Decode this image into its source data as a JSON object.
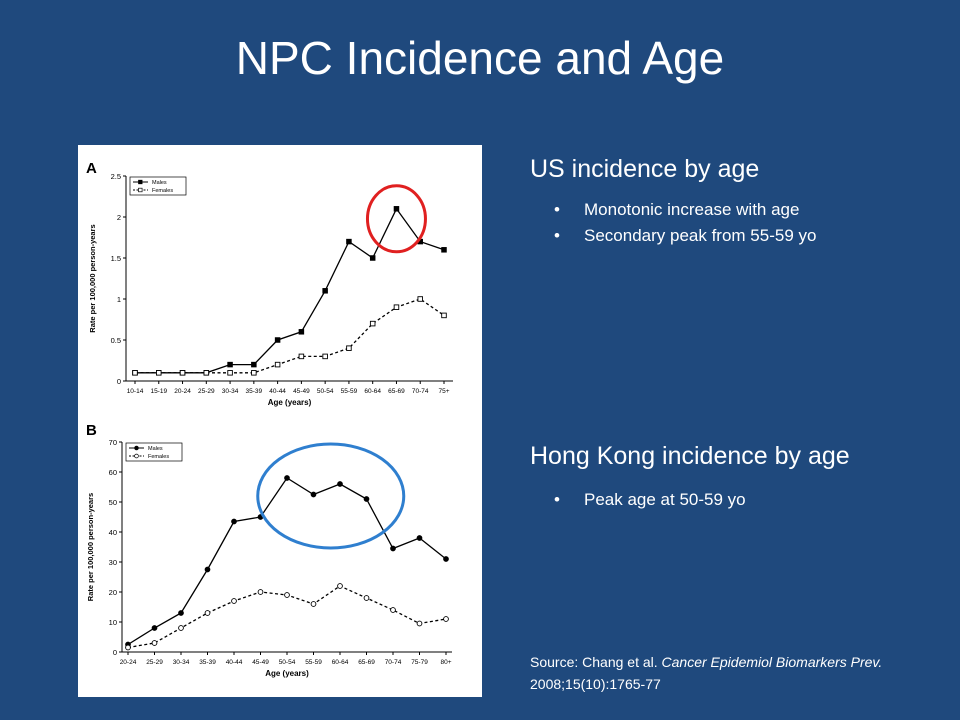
{
  "slide": {
    "title": "NPC Incidence and Age"
  },
  "right": {
    "us": {
      "heading": "US incidence by age",
      "bullets": [
        "Monotonic increase with age",
        "Secondary peak from 55-59 yo"
      ]
    },
    "hk": {
      "heading": "Hong Kong incidence by age",
      "bullets": [
        "Peak age at 50-59 yo"
      ]
    },
    "source": {
      "prefix": "Source: Chang et al. ",
      "journal": "Cancer Epidemiol Biomarkers Prev.",
      "citation": " 2008;15(10):1765-77"
    }
  },
  "colors": {
    "background": "#1f497d",
    "us_highlight": "#e02020",
    "hk_highlight": "#2f7fcf"
  },
  "chart_data": [
    {
      "type": "line",
      "panel_label": "A",
      "categories": [
        "10-14",
        "15-19",
        "20-24",
        "25-29",
        "30-34",
        "35-39",
        "40-44",
        "45-49",
        "50-54",
        "55-59",
        "60-64",
        "65-69",
        "70-74",
        "75+"
      ],
      "series": [
        {
          "name": "Males",
          "values": [
            0.1,
            0.1,
            0.1,
            0.1,
            0.2,
            0.2,
            0.5,
            0.6,
            1.1,
            1.7,
            1.5,
            2.1,
            1.7,
            1.6
          ]
        },
        {
          "name": "Females",
          "values": [
            0.1,
            0.1,
            0.1,
            0.1,
            0.1,
            0.1,
            0.2,
            0.3,
            0.3,
            0.4,
            0.7,
            0.9,
            1.0,
            0.8
          ]
        }
      ],
      "xlabel": "Age (years)",
      "ylabel": "Rate per 100,000 person-years",
      "ylim": [
        0,
        2.5
      ],
      "yticks": [
        0,
        0.5,
        1,
        1.5,
        2,
        2.5
      ],
      "ytick_labels": [
        "0",
        "0.5",
        "1",
        "1.5",
        "2",
        "2.5"
      ],
      "legend": "top-left",
      "highlight": {
        "category_index": 11,
        "color": "red"
      }
    },
    {
      "type": "line",
      "panel_label": "B",
      "categories": [
        "20-24",
        "25-29",
        "30-34",
        "35-39",
        "40-44",
        "45-49",
        "50-54",
        "55-59",
        "60-64",
        "65-69",
        "70-74",
        "75-79",
        "80+"
      ],
      "series": [
        {
          "name": "Males",
          "values": [
            2.5,
            8,
            13,
            27.5,
            43.5,
            45,
            58,
            52.5,
            56,
            51,
            34.5,
            38,
            31
          ]
        },
        {
          "name": "Females",
          "values": [
            1.5,
            3,
            8,
            13,
            17,
            20,
            19,
            16,
            22,
            18,
            14,
            9.5,
            11
          ]
        }
      ],
      "xlabel": "Age (years)",
      "ylabel": "Rate per 100,000 person-years",
      "ylim": [
        0,
        70
      ],
      "yticks": [
        0,
        10,
        20,
        30,
        40,
        50,
        60,
        70
      ],
      "ytick_labels": [
        "0",
        "10",
        "20",
        "30",
        "40",
        "50",
        "60",
        "70"
      ],
      "legend": "top-left",
      "highlight": {
        "category_range": [
          6,
          9
        ],
        "color": "blue"
      }
    }
  ]
}
